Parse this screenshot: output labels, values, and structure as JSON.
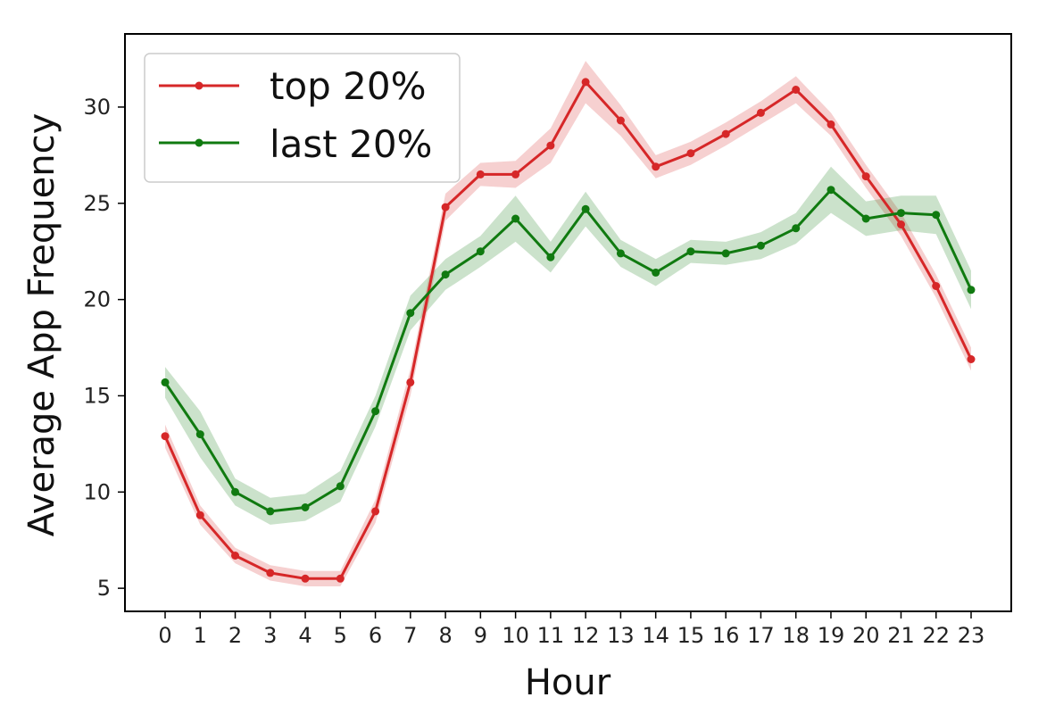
{
  "chart_data": {
    "type": "line",
    "title": "",
    "xlabel": "Hour",
    "ylabel": "Average App Frequency",
    "x": [
      0,
      1,
      2,
      3,
      4,
      5,
      6,
      7,
      8,
      9,
      10,
      11,
      12,
      13,
      14,
      15,
      16,
      17,
      18,
      19,
      20,
      21,
      22,
      23
    ],
    "x_tick_labels": [
      "0",
      "1",
      "2",
      "3",
      "4",
      "5",
      "6",
      "7",
      "8",
      "9",
      "10",
      "11",
      "12",
      "13",
      "14",
      "15",
      "16",
      "17",
      "18",
      "19",
      "20",
      "21",
      "22",
      "23"
    ],
    "y_ticks": [
      5,
      10,
      15,
      20,
      25,
      30
    ],
    "ylim": [
      3.8,
      33.8
    ],
    "grid": false,
    "legend_position": "top-left",
    "series": [
      {
        "name": "top 20%",
        "color": "#d62728",
        "values": [
          12.9,
          8.8,
          6.7,
          5.8,
          5.5,
          5.5,
          9.0,
          15.7,
          24.8,
          26.5,
          26.5,
          28.0,
          31.3,
          29.3,
          26.9,
          27.6,
          28.6,
          29.7,
          30.9,
          29.1,
          26.4,
          23.9,
          20.7,
          16.9
        ],
        "band": [
          0.6,
          0.5,
          0.4,
          0.4,
          0.4,
          0.4,
          0.6,
          0.7,
          0.7,
          0.6,
          0.7,
          0.9,
          1.1,
          0.8,
          0.6,
          0.6,
          0.6,
          0.6,
          0.7,
          0.6,
          0.6,
          0.6,
          0.6,
          0.6
        ]
      },
      {
        "name": "last 20%",
        "color": "#107a10",
        "values": [
          15.7,
          13.0,
          10.0,
          9.0,
          9.2,
          10.3,
          14.2,
          19.3,
          21.3,
          22.5,
          24.2,
          22.2,
          24.7,
          22.4,
          21.4,
          22.5,
          22.4,
          22.8,
          23.7,
          25.7,
          24.2,
          24.5,
          24.4,
          20.5
        ],
        "band": [
          0.8,
          1.2,
          0.7,
          0.7,
          0.7,
          0.8,
          0.8,
          0.9,
          0.8,
          0.8,
          1.2,
          0.8,
          0.9,
          0.7,
          0.7,
          0.6,
          0.6,
          0.7,
          0.8,
          1.2,
          0.9,
          0.9,
          1.0,
          1.0
        ]
      }
    ]
  }
}
